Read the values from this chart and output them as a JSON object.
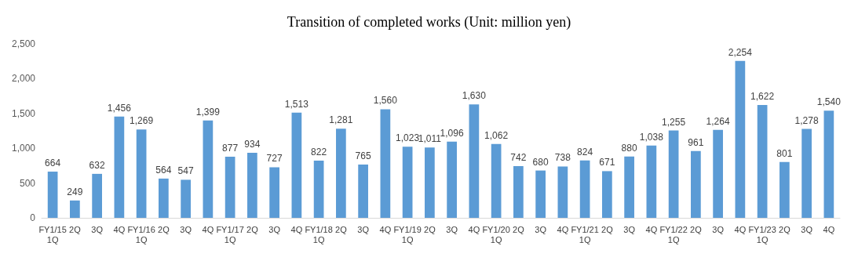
{
  "chart_data": {
    "type": "bar",
    "title": "Transition of completed works (Unit: million yen)",
    "categories": [
      "FY1/15\n1Q",
      "2Q",
      "3Q",
      "4Q",
      "FY1/16\n1Q",
      "2Q",
      "3Q",
      "4Q",
      "FY1/17\n1Q",
      "2Q",
      "3Q",
      "4Q",
      "FY1/18\n1Q",
      "2Q",
      "3Q",
      "4Q",
      "FY1/19\n1Q",
      "2Q",
      "3Q",
      "4Q",
      "FY1/20\n1Q",
      "2Q",
      "3Q",
      "4Q",
      "FY1/21\n1Q",
      "2Q",
      "3Q",
      "4Q",
      "FY1/22\n1Q",
      "2Q",
      "3Q",
      "4Q",
      "FY1/23\n1Q",
      "2Q",
      "3Q",
      "4Q"
    ],
    "values": [
      664,
      249,
      632,
      1456,
      1269,
      564,
      547,
      1399,
      877,
      934,
      727,
      1513,
      822,
      1281,
      765,
      1560,
      1023,
      1011,
      1096,
      1630,
      1062,
      742,
      680,
      738,
      824,
      671,
      880,
      1038,
      1255,
      961,
      1264,
      2254,
      1622,
      801,
      1278,
      1540
    ],
    "value_labels": [
      "664",
      "249",
      "632",
      "1,456",
      "1,269",
      "564",
      "547",
      "1,399",
      "877",
      "934",
      "727",
      "1,513",
      "822",
      "1,281",
      "765",
      "1,560",
      "1,023",
      "1,011",
      "1,096",
      "1,630",
      "1,062",
      "742",
      "680",
      "738",
      "824",
      "671",
      "880",
      "1,038",
      "1,255",
      "961",
      "1,264",
      "2,254",
      "1,622",
      "801",
      "1,278",
      "1,540"
    ],
    "color": "#5b9bd5",
    "ylim": [
      0,
      2500
    ],
    "yticks": [
      0,
      500,
      {
        "value": 1000,
        "label": "1,000"
      },
      {
        "value": 1500,
        "label": "1,500"
      },
      {
        "value": 2000,
        "label": "2,000"
      },
      {
        "value": 2500,
        "label": "2,500"
      }
    ],
    "grid": false
  }
}
